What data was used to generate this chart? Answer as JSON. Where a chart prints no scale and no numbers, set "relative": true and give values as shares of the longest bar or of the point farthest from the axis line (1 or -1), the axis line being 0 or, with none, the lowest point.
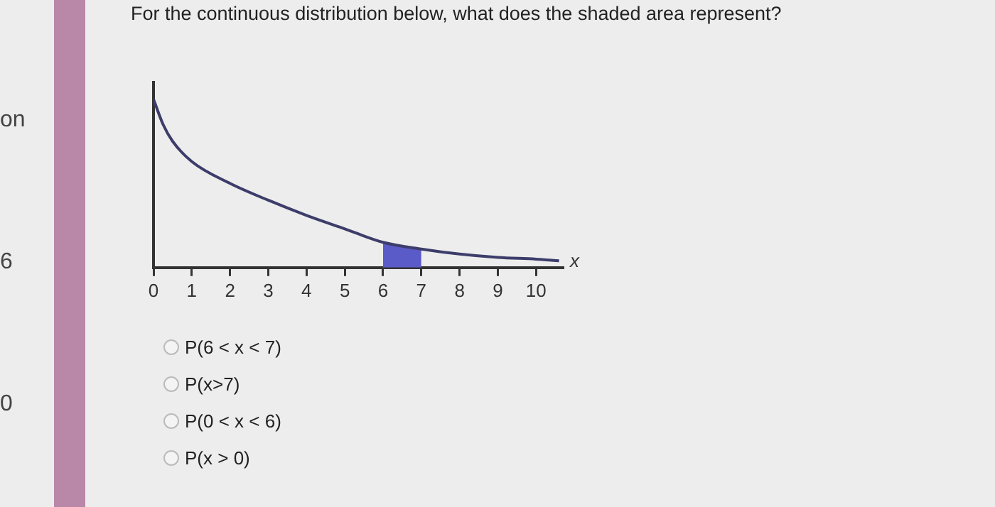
{
  "chart_data": {
    "type": "line",
    "title": "For the continuous distribution below, what does the shaded area represent?",
    "xlabel": "x",
    "relative": true,
    "x": [
      0,
      0.25,
      0.5,
      1,
      2,
      3,
      4,
      5,
      6,
      7,
      8,
      9,
      10,
      10.6
    ],
    "series": [
      {
        "type": "area",
        "color": "#5a5ac8",
        "x": [
          6,
          6.5,
          7
        ],
        "values": [
          0.15,
          0.13,
          0.11
        ]
      },
      {
        "color": "#3d3d6b",
        "values": [
          1,
          0.85,
          0.75,
          0.63,
          0.5,
          0.4,
          0.31,
          0.23,
          0.15,
          0.11,
          0.08,
          0.06,
          0.05,
          0.04
        ]
      }
    ],
    "xlim": [
      0,
      10.7
    ],
    "xticks": [
      0,
      1,
      2,
      3,
      4,
      5,
      6,
      7,
      8,
      9,
      10
    ],
    "grid": false,
    "legend": false,
    "marker": "none",
    "line_style": "solid",
    "annotations": [
      "P(6 < x < 7)",
      "P(x>7)",
      "P(0 < x < 6)",
      "P(x > 0)",
      "on",
      "6",
      "0"
    ]
  }
}
